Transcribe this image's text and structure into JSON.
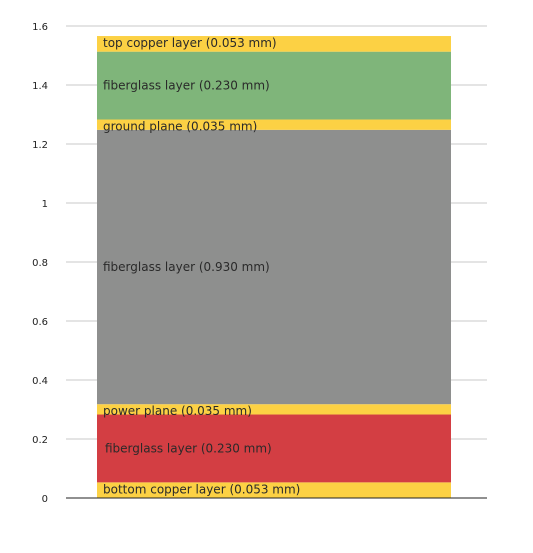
{
  "chart_data": {
    "type": "bar",
    "stacked": true,
    "title": "",
    "xlabel": "",
    "ylabel": "",
    "ylim": [
      0,
      1.6
    ],
    "yticks": [
      0,
      0.2,
      0.4,
      0.6,
      0.8,
      1,
      1.2,
      1.4,
      1.6
    ],
    "ytick_labels": [
      "0",
      "0.2",
      "0.4",
      "0.6",
      "0.8",
      "1",
      "1.2",
      "1.4",
      "1.6"
    ],
    "grid": true,
    "legend": "none",
    "series": [
      {
        "label": "bottom copper layer (0.053 mm)",
        "value": 0.053,
        "color": "#fcd144"
      },
      {
        "label": "fiberglass layer (0.230 mm)",
        "value": 0.23,
        "color": "#d33e43"
      },
      {
        "label": "power plane (0.035 mm)",
        "value": 0.035,
        "color": "#fcd144"
      },
      {
        "label": "fiberglass layer (0.930 mm)",
        "value": 0.93,
        "color": "#8e8f8e"
      },
      {
        "label": "ground plane (0.035 mm)",
        "value": 0.035,
        "color": "#fcd144"
      },
      {
        "label": "fiberglass layer (0.230 mm)",
        "value": 0.23,
        "color": "#7fb57a"
      },
      {
        "label": "top copper layer (0.053 mm)",
        "value": 0.053,
        "color": "#fcd144"
      }
    ]
  }
}
